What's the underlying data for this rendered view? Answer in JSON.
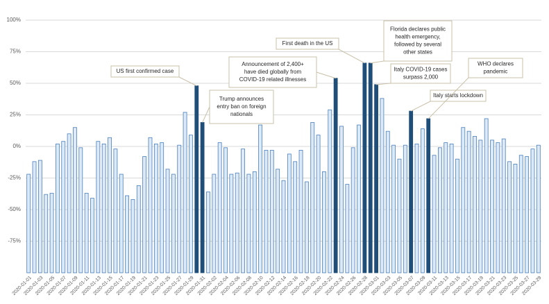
{
  "chart_data": {
    "type": "bar",
    "categories": [
      "2020-01-01",
      null,
      "2020-01-03",
      null,
      "2020-01-05",
      null,
      "2020-01-07",
      null,
      "2020-01-09",
      null,
      "2020-01-11",
      null,
      "2020-01-13",
      null,
      "2020-01-15",
      null,
      "2020-01-17",
      null,
      "2020-01-19",
      null,
      "2020-01-21",
      null,
      "2020-01-23",
      null,
      "2020-01-25",
      null,
      "2020-01-27",
      null,
      "2020-01-29",
      null,
      "2020-01-31",
      null,
      "2020-02-02",
      null,
      "2020-02-04",
      null,
      "2020-02-06",
      null,
      "2020-02-08",
      null,
      "2020-02-10",
      null,
      "2020-02-12",
      null,
      "2020-02-14",
      null,
      "2020-02-16",
      null,
      "2020-02-18",
      null,
      "2020-02-20",
      null,
      "2020-02-22",
      null,
      "2020-02-24",
      null,
      "2020-02-26",
      null,
      "2020-02-28",
      null,
      "2020-03-01",
      null,
      "2020-03-03",
      null,
      "2020-03-05",
      null,
      "2020-03-07",
      null,
      "2020-03-09",
      null,
      "2020-03-11",
      null,
      "2020-03-13",
      null,
      "2020-03-15",
      null,
      "2020-03-17",
      null,
      "2020-03-19",
      null,
      "2020-03-21",
      null,
      "2020-03-23",
      null,
      "2020-03-25",
      null,
      "2020-03-27",
      null,
      "2020-03-29"
    ],
    "values": [
      -22,
      -12,
      -11,
      -38,
      -37,
      2,
      4,
      10,
      15,
      -1,
      -37,
      -41,
      4,
      2,
      7,
      -2,
      -22,
      -39,
      -42,
      -31,
      -8,
      7,
      2,
      3,
      -18,
      -22,
      1,
      27,
      9,
      48,
      19,
      -36,
      -22,
      3,
      -1,
      -22,
      -21,
      -2,
      -22,
      -20,
      17,
      -3,
      -3,
      -18,
      -27,
      -6,
      -12,
      -3,
      -28,
      19,
      9,
      -20,
      29,
      54,
      16,
      -30,
      -1,
      17,
      66,
      66,
      49,
      38,
      12,
      1,
      -10,
      1,
      28,
      2,
      14,
      22,
      -7,
      -1,
      3,
      2,
      -10,
      15,
      12,
      8,
      5,
      22,
      5,
      3,
      6,
      -12,
      -14,
      -7,
      -8,
      -2,
      1
    ],
    "colors": [
      "#dce9f7",
      "#dce9f7",
      "#dce9f7",
      "#dce9f7",
      "#dce9f7",
      "#dce9f7",
      "#dce9f7",
      "#dce9f7",
      "#dce9f7",
      "#dce9f7",
      "#dce9f7",
      "#dce9f7",
      "#dce9f7",
      "#dce9f7",
      "#dce9f7",
      "#dce9f7",
      "#dce9f7",
      "#dce9f7",
      "#dce9f7",
      "#dce9f7",
      "#dce9f7",
      "#dce9f7",
      "#dce9f7",
      "#dce9f7",
      "#dce9f7",
      "#dce9f7",
      "#dce9f7",
      "#dce9f7",
      "#dce9f7",
      "#1f4e79",
      "#1f4e79",
      "#dce9f7",
      "#dce9f7",
      "#dce9f7",
      "#dce9f7",
      "#dce9f7",
      "#dce9f7",
      "#dce9f7",
      "#dce9f7",
      "#dce9f7",
      "#dce9f7",
      "#dce9f7",
      "#dce9f7",
      "#dce9f7",
      "#dce9f7",
      "#dce9f7",
      "#dce9f7",
      "#dce9f7",
      "#dce9f7",
      "#dce9f7",
      "#dce9f7",
      "#dce9f7",
      "#dce9f7",
      "#1f4e79",
      "#dce9f7",
      "#dce9f7",
      "#dce9f7",
      "#dce9f7",
      "#1f4e79",
      "#1f4e79",
      "#1f4e79",
      "#dce9f7",
      "#dce9f7",
      "#dce9f7",
      "#dce9f7",
      "#dce9f7",
      "#1f4e79",
      "#dce9f7",
      "#dce9f7",
      "#1f4e79",
      "#dce9f7",
      "#dce9f7",
      "#dce9f7",
      "#dce9f7",
      "#dce9f7",
      "#dce9f7",
      "#dce9f7",
      "#dce9f7",
      "#dce9f7",
      "#dce9f7",
      "#dce9f7",
      "#dce9f7",
      "#dce9f7",
      "#dce9f7",
      "#dce9f7",
      "#dce9f7",
      "#dce9f7",
      "#dce9f7",
      "#dce9f7"
    ],
    "ylim": [
      -100,
      100
    ],
    "yticks": [
      {
        "value": -75,
        "label": "-75%"
      },
      {
        "value": -50,
        "label": "-50%"
      },
      {
        "value": -25,
        "label": "-25%"
      },
      {
        "value": 0,
        "label": "0%"
      },
      {
        "value": 25,
        "label": "25%"
      },
      {
        "value": 50,
        "label": "50%"
      },
      {
        "value": 75,
        "label": "75%"
      },
      {
        "value": 100,
        "label": "100%"
      }
    ],
    "grid": true,
    "annotations": [
      {
        "lines": [
          "US first confirmed case"
        ]
      },
      {
        "lines": [
          "Trump announces",
          "entry ban on foreign",
          "nationals"
        ]
      },
      {
        "lines": [
          "Announcement of 2,400+",
          "have died globally from",
          "COVID-19 related illnesses"
        ]
      },
      {
        "lines": [
          "First death in the US"
        ]
      },
      {
        "lines": [
          "Florida declares public",
          "health emergency,",
          "followed by several",
          "other states"
        ]
      },
      {
        "lines": [
          "Italy COVID-19 cases",
          "surpass 2,000"
        ]
      },
      {
        "lines": [
          "Italy starts lockdown"
        ]
      },
      {
        "lines": [
          "WHO declares",
          "pandemic"
        ]
      }
    ]
  }
}
